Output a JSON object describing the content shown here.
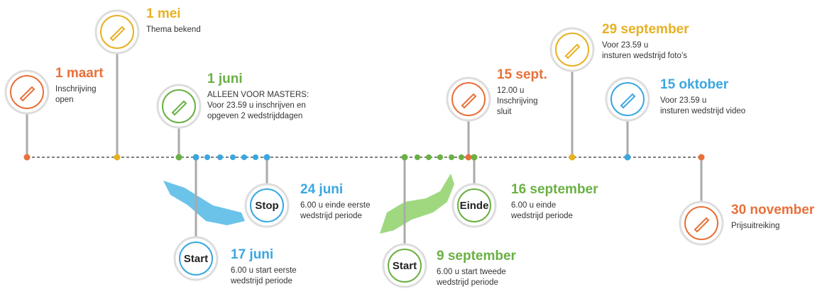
{
  "events": [
    {
      "date": "1 maart",
      "lines": [
        "Inschrijving",
        "open"
      ]
    },
    {
      "date": "1 mei",
      "lines": [
        "Thema bekend"
      ]
    },
    {
      "date": "1 juni",
      "lines": [
        "ALLEEN VOOR MASTERS:",
        "Voor 23.59 u inschrijven en",
        "opgeven 2 wedstrijddagen"
      ]
    },
    {
      "date": "17 juni",
      "badge": "Start",
      "lines": [
        "6.00 u start eerste",
        "wedstrijd periode"
      ]
    },
    {
      "date": "24 juni",
      "badge": "Stop",
      "lines": [
        "6.00 u einde eerste",
        "wedstrijd periode"
      ]
    },
    {
      "date": "9 september",
      "badge": "Start",
      "lines": [
        "6.00 u start tweede",
        "wedstrijd periode"
      ]
    },
    {
      "date": "15 sept.",
      "lines": [
        "12.00 u",
        "Inschrijving",
        "sluit"
      ]
    },
    {
      "date": "16 september",
      "badge": "Einde",
      "lines": [
        "6.00 u einde",
        "wedstrijd periode"
      ]
    },
    {
      "date": "29 september",
      "lines": [
        "Voor 23.59 u",
        "insturen wedstrijd foto’s"
      ]
    },
    {
      "date": "15 oktober",
      "lines": [
        "Voor 23.59 u",
        "insturen wedstrijd video"
      ]
    },
    {
      "date": "30 november",
      "lines": [
        "Prijsuitreiking"
      ]
    }
  ]
}
